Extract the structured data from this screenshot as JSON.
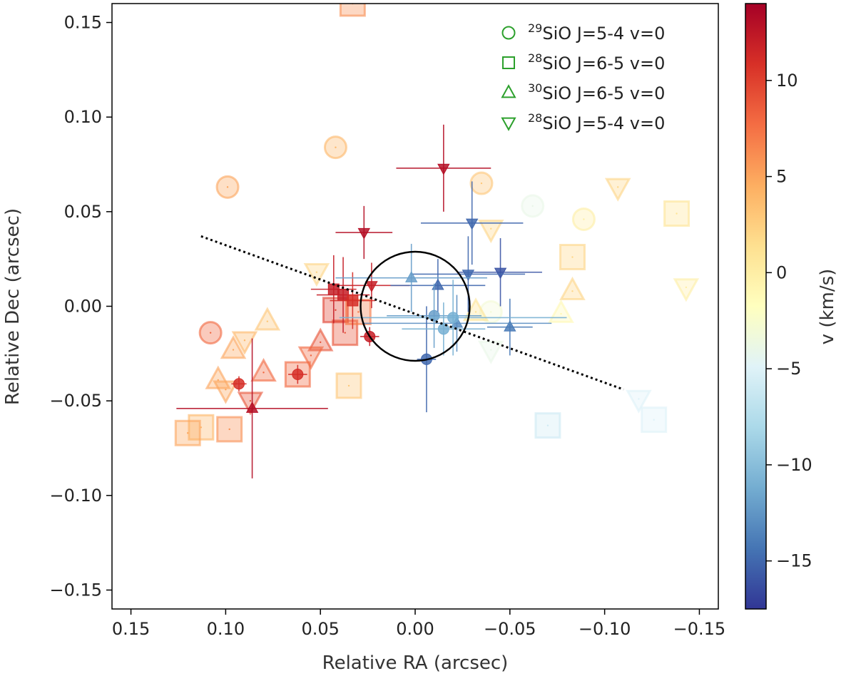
{
  "chart_data": {
    "type": "scatter",
    "xlabel": "Relative RA (arcsec)",
    "ylabel": "Relative Dec (arcsec)",
    "colorbar_label": "v (km/s)",
    "xlim": [
      0.16,
      -0.16
    ],
    "ylim": [
      -0.16,
      0.16
    ],
    "x_ticks": [
      0.15,
      0.1,
      0.05,
      0.0,
      -0.05,
      -0.1,
      -0.15
    ],
    "x_tick_labels": [
      "0.15",
      "0.10",
      "0.05",
      "0.00",
      "−0.05",
      "−0.10",
      "−0.15"
    ],
    "y_ticks": [
      0.15,
      0.1,
      0.05,
      0.0,
      -0.05,
      -0.1,
      -0.15
    ],
    "y_tick_labels": [
      "0.15",
      "0.10",
      "0.05",
      "0.00",
      "−0.05",
      "−0.10",
      "−0.15"
    ],
    "colorbar_range": [
      -17.5,
      14
    ],
    "colorbar_ticks": [
      10,
      5,
      0,
      -5,
      -10,
      -15
    ],
    "colorbar_tick_labels": [
      "10",
      "5",
      "0",
      "−5",
      "−10",
      "−15"
    ],
    "colormap": [
      "#313695",
      "#4575b4",
      "#74add1",
      "#abd9e9",
      "#e0f3f8",
      "#ffffbf",
      "#fee090",
      "#fdae61",
      "#f46d43",
      "#d73027",
      "#a50026"
    ],
    "grid": false,
    "legend_position": "top-right",
    "legend_color": "#2ca02c",
    "legend": [
      {
        "marker": "circle",
        "iso": "29",
        "rest": "SiO J=5-4 v=0"
      },
      {
        "marker": "square",
        "iso": "28",
        "rest": "SiO J=6-5 v=0"
      },
      {
        "marker": "triangle-up",
        "iso": "30",
        "rest": "SiO J=6-5 v=0"
      },
      {
        "marker": "triangle-down",
        "iso": "28",
        "rest": "SiO J=5-4 v=0"
      }
    ],
    "dotted_line": {
      "x": [
        0.113,
        -0.11
      ],
      "y": [
        0.037,
        -0.044
      ]
    },
    "center_circle": {
      "x": 0.0,
      "y": 0.0,
      "radius": 0.012
    },
    "error_bar_points": [
      {
        "marker": "triangle-down",
        "x": -0.015,
        "y": 0.073,
        "v": 13,
        "xerr": 0.025,
        "yerr": 0.023
      },
      {
        "marker": "triangle-down",
        "x": 0.027,
        "y": 0.039,
        "v": 13,
        "xerr": 0.015,
        "yerr": 0.014
      },
      {
        "marker": "triangle-up",
        "x": 0.086,
        "y": -0.054,
        "v": 13,
        "xerr": 0.04,
        "yerr": 0.037
      },
      {
        "marker": "circle",
        "x": 0.024,
        "y": -0.016,
        "v": 12,
        "xerr": 0.005,
        "yerr": 0.005
      },
      {
        "marker": "circle",
        "x": 0.062,
        "y": -0.036,
        "v": 11,
        "xerr": 0.005,
        "yerr": 0.005
      },
      {
        "marker": "circle",
        "x": 0.093,
        "y": -0.041,
        "v": 11,
        "xerr": 0.004,
        "yerr": 0.004
      },
      {
        "marker": "triangle-down",
        "x": 0.023,
        "y": 0.011,
        "v": 12,
        "xerr": 0.02,
        "yerr": 0.012
      },
      {
        "marker": "square",
        "x": 0.043,
        "y": 0.009,
        "v": 12,
        "xerr": 0.012,
        "yerr": 0.018
      },
      {
        "marker": "square",
        "x": 0.038,
        "y": 0.006,
        "v": 12,
        "xerr": 0.014,
        "yerr": 0.02
      },
      {
        "marker": "square",
        "x": 0.033,
        "y": 0.003,
        "v": 11,
        "xerr": 0.012,
        "yerr": 0.015
      },
      {
        "marker": "triangle-down",
        "x": -0.03,
        "y": 0.044,
        "v": -15,
        "xerr": 0.027,
        "yerr": 0.022
      },
      {
        "marker": "triangle-down",
        "x": -0.045,
        "y": 0.018,
        "v": -16,
        "xerr": 0.022,
        "yerr": 0.018
      },
      {
        "marker": "triangle-down",
        "x": -0.028,
        "y": 0.017,
        "v": -15,
        "xerr": 0.03,
        "yerr": 0.02
      },
      {
        "marker": "triangle-up",
        "x": -0.012,
        "y": 0.011,
        "v": -15,
        "xerr": 0.025,
        "yerr": 0.014
      },
      {
        "marker": "triangle-up",
        "x": -0.05,
        "y": -0.011,
        "v": -14,
        "xerr": 0.012,
        "yerr": 0.015
      },
      {
        "marker": "triangle-up",
        "x": -0.022,
        "y": -0.009,
        "v": -13,
        "xerr": 0.05,
        "yerr": 0.015
      },
      {
        "marker": "circle",
        "x": -0.006,
        "y": -0.028,
        "v": -15,
        "xerr": 0.005,
        "yerr": 0.028
      },
      {
        "marker": "triangle-up",
        "x": 0.002,
        "y": 0.015,
        "v": -12,
        "xerr": 0.04,
        "yerr": 0.018
      },
      {
        "marker": "circle",
        "x": -0.01,
        "y": -0.005,
        "v": -12,
        "xerr": 0.025,
        "yerr": 0.017
      },
      {
        "marker": "circle",
        "x": -0.015,
        "y": -0.012,
        "v": -11,
        "xerr": 0.022,
        "yerr": 0.014
      },
      {
        "marker": "circle",
        "x": -0.02,
        "y": -0.006,
        "v": -11,
        "xerr": 0.06,
        "yerr": 0.02
      }
    ],
    "points": [
      {
        "marker": "circle",
        "x": 0.042,
        "y": 0.084,
        "v": 4
      },
      {
        "marker": "circle",
        "x": 0.099,
        "y": 0.063,
        "v": 5
      },
      {
        "marker": "circle",
        "x": -0.035,
        "y": 0.065,
        "v": 3
      },
      {
        "marker": "circle",
        "x": -0.062,
        "y": 0.053,
        "v": -4
      },
      {
        "marker": "circle",
        "x": -0.089,
        "y": 0.046,
        "v": 0
      },
      {
        "marker": "circle",
        "x": 0.108,
        "y": -0.014,
        "v": 8
      },
      {
        "marker": "circle",
        "x": -0.04,
        "y": -0.003,
        "v": -3
      },
      {
        "marker": "square",
        "x": 0.033,
        "y": 0.16,
        "v": 6
      },
      {
        "marker": "square",
        "x": -0.138,
        "y": 0.049,
        "v": 1
      },
      {
        "marker": "square",
        "x": -0.083,
        "y": 0.026,
        "v": 2
      },
      {
        "marker": "square",
        "x": 0.035,
        "y": -0.042,
        "v": 3
      },
      {
        "marker": "square",
        "x": 0.062,
        "y": -0.036,
        "v": 8
      },
      {
        "marker": "square",
        "x": 0.098,
        "y": -0.065,
        "v": 6
      },
      {
        "marker": "square",
        "x": 0.113,
        "y": -0.064,
        "v": 4
      },
      {
        "marker": "square",
        "x": 0.12,
        "y": -0.067,
        "v": 5
      },
      {
        "marker": "square",
        "x": -0.07,
        "y": -0.063,
        "v": -6
      },
      {
        "marker": "square",
        "x": -0.126,
        "y": -0.06,
        "v": -5
      },
      {
        "marker": "square",
        "x": 0.037,
        "y": -0.014,
        "v": 9
      },
      {
        "marker": "square",
        "x": 0.042,
        "y": -0.002,
        "v": 10
      },
      {
        "marker": "triangle-up",
        "x": 0.078,
        "y": -0.008,
        "v": 3
      },
      {
        "marker": "triangle-up",
        "x": 0.096,
        "y": -0.023,
        "v": 5
      },
      {
        "marker": "triangle-up",
        "x": 0.08,
        "y": -0.035,
        "v": 8
      },
      {
        "marker": "triangle-up",
        "x": 0.05,
        "y": -0.019,
        "v": 9
      },
      {
        "marker": "triangle-up",
        "x": 0.104,
        "y": -0.039,
        "v": 5
      },
      {
        "marker": "triangle-up",
        "x": -0.083,
        "y": 0.008,
        "v": 2
      },
      {
        "marker": "triangle-up",
        "x": -0.077,
        "y": -0.004,
        "v": -1
      },
      {
        "marker": "triangle-up",
        "x": -0.032,
        "y": -0.003,
        "v": 1
      },
      {
        "marker": "triangle-down",
        "x": -0.107,
        "y": 0.063,
        "v": 2
      },
      {
        "marker": "triangle-down",
        "x": -0.04,
        "y": 0.041,
        "v": 2
      },
      {
        "marker": "triangle-down",
        "x": -0.143,
        "y": 0.01,
        "v": 0
      },
      {
        "marker": "triangle-down",
        "x": 0.052,
        "y": 0.018,
        "v": 2
      },
      {
        "marker": "triangle-down",
        "x": 0.09,
        "y": -0.018,
        "v": 4
      },
      {
        "marker": "triangle-down",
        "x": 0.1,
        "y": -0.044,
        "v": 5
      },
      {
        "marker": "triangle-down",
        "x": 0.087,
        "y": -0.05,
        "v": 9
      },
      {
        "marker": "triangle-down",
        "x": 0.055,
        "y": -0.026,
        "v": 8
      },
      {
        "marker": "triangle-down",
        "x": -0.118,
        "y": -0.049,
        "v": -5
      },
      {
        "marker": "triangle-down",
        "x": -0.04,
        "y": -0.023,
        "v": -4
      },
      {
        "marker": "square",
        "x": 0.03,
        "y": -0.003,
        "v": 7
      }
    ]
  }
}
